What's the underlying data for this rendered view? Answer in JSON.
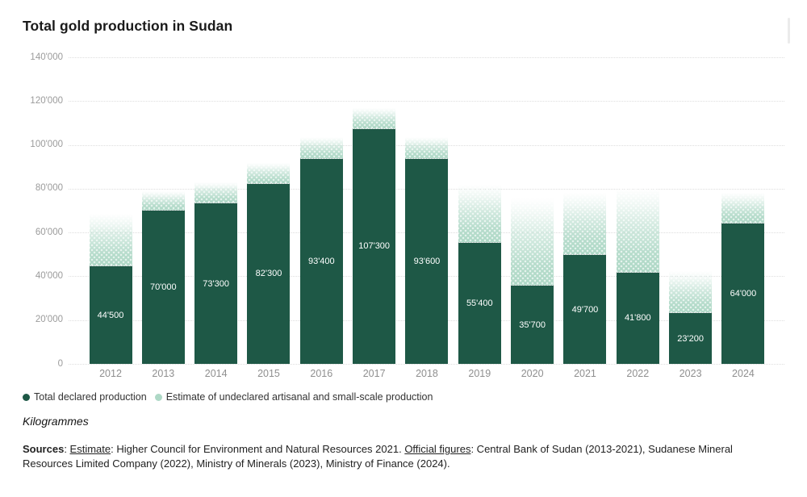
{
  "title": "Total gold production in Sudan",
  "unit_label": "Kilogrammes",
  "colors": {
    "declared_green": "#1e5846",
    "estimate_green": "#aed8c6",
    "gridline_gray": "#dedede",
    "axis_label_gray": "#9b9b9b",
    "bar_label_white": "#ffffff"
  },
  "legend": {
    "items": [
      {
        "label": "Total declared production",
        "color": "#1e5846"
      },
      {
        "label": "Estimate of undeclared artisanal and small-scale production",
        "color": "#aed8c6"
      }
    ]
  },
  "sources": {
    "segments": [
      {
        "text": "Sources",
        "bold": true
      },
      {
        "text": ": "
      },
      {
        "text": "Estimate",
        "underline": true
      },
      {
        "text": ": Higher Council for Environment and Natural Resources 2021. "
      },
      {
        "text": "Official figures",
        "underline": true
      },
      {
        "text": ": Central Bank of Sudan (2013-2021), Sudanese Mineral Resources Limited Company (2022), Ministry of Minerals (2023), Ministry of Finance (2024)."
      }
    ]
  },
  "chart_data": {
    "type": "bar",
    "stacked": true,
    "title": "Total gold production in Sudan",
    "unit": "Kilogrammes",
    "categories": [
      "2012",
      "2013",
      "2014",
      "2015",
      "2016",
      "2017",
      "2018",
      "2019",
      "2020",
      "2021",
      "2022",
      "2023",
      "2024"
    ],
    "series": [
      {
        "name": "Total declared production",
        "color": "#1e5846",
        "values": [
          44500,
          70000,
          73300,
          82300,
          93400,
          107300,
          93600,
          55400,
          35700,
          49700,
          41800,
          23200,
          64000
        ],
        "labels": [
          "44'500",
          "70'000",
          "73'300",
          "82'300",
          "93'400",
          "107'300",
          "93'600",
          "55'400",
          "35'700",
          "49'700",
          "41'800",
          "23'200",
          "64'000"
        ]
      },
      {
        "name": "Estimate of undeclared artisanal and small-scale production",
        "color": "#aed8c6",
        "values": [
          24000,
          9000,
          9500,
          9500,
          10000,
          9500,
          10000,
          26500,
          40000,
          28500,
          38000,
          19000,
          14000
        ]
      }
    ],
    "ylim": [
      0,
      140000
    ],
    "yticks": [
      0,
      20000,
      40000,
      60000,
      80000,
      100000,
      120000,
      140000
    ],
    "ytick_labels": [
      "0",
      "20'000",
      "40'000",
      "60'000",
      "80'000",
      "100'000",
      "120'000",
      "140'000"
    ],
    "grid": "horizontal-dotted",
    "legend_position": "bottom-left",
    "value_labels": "inside-declared-segment"
  }
}
